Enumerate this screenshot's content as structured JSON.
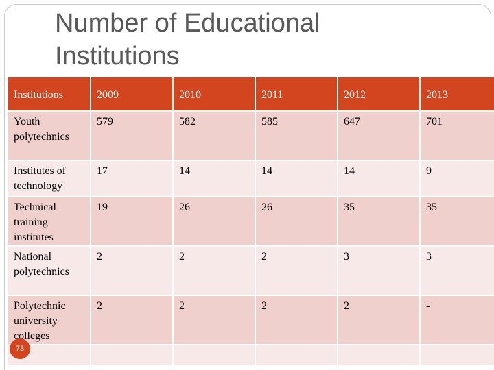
{
  "slide": {
    "title": "Number of Educational Institutions",
    "page_number": "73"
  },
  "table": {
    "headers": [
      "Institutions",
      "2009",
      "2010",
      "2011",
      "2012",
      "2013"
    ],
    "rows": [
      [
        "Youth polytechnics",
        "579",
        "582",
        "585",
        "647",
        "701"
      ],
      [
        "Institutes of technology",
        "17",
        "14",
        "14",
        "14",
        "9"
      ],
      [
        "Technical training institutes",
        "19",
        "26",
        "26",
        "35",
        "35"
      ],
      [
        "National polytechnics",
        "2",
        "2",
        "2",
        "3",
        "3"
      ],
      [
        "Polytechnic university colleges",
        "2",
        "2",
        "2",
        "2",
        "-"
      ],
      [
        "",
        "",
        "",
        "",
        "",
        ""
      ]
    ]
  },
  "colors": {
    "header_background": "#d2451e",
    "row_odd": "#efd0cd",
    "row_even": "#f7e9e8"
  }
}
